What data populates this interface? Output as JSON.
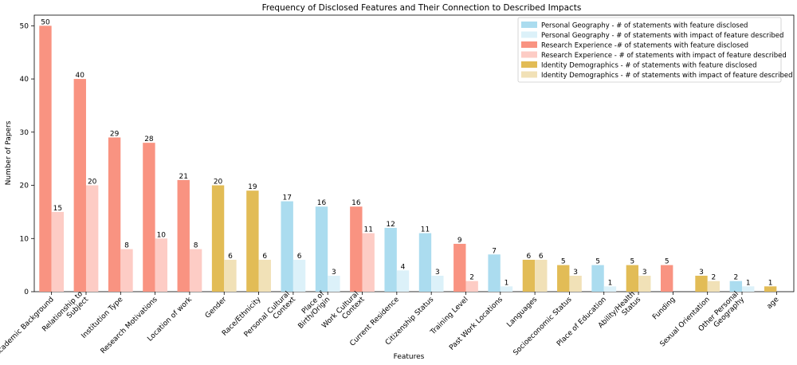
{
  "chart_data": {
    "type": "bar",
    "title": "Frequency of Disclosed Features and Their Connection to Described Impacts",
    "xlabel": "Features",
    "ylabel": "Number of Papers",
    "ylim": [
      0,
      52
    ],
    "yticks": [
      0,
      10,
      20,
      30,
      40,
      50
    ],
    "grid": false,
    "legend_position": "top-right",
    "colors": {
      "personal_disclosed": "#abdcef",
      "personal_impact": "#dcf1f9",
      "research_disclosed": "#f99381",
      "research_impact": "#fdccc5",
      "identity_disclosed": "#e2bc56",
      "identity_impact": "#f1e1b7"
    },
    "legend": [
      {
        "label": "Personal Geography - # of statements with feature disclosed",
        "color_key": "personal_disclosed"
      },
      {
        "label": "Personal Geography - # of statements with impact of feature described",
        "color_key": "personal_impact"
      },
      {
        "label": "Research Experience -# of statements with feature disclosed",
        "color_key": "research_disclosed"
      },
      {
        "label": "Research Experience - # of statements with impact of feature described",
        "color_key": "research_impact"
      },
      {
        "label": "Identity Demographics - # of statements with feature disclosed",
        "color_key": "identity_disclosed"
      },
      {
        "label": "Identity Demographics - # of statements with impact of feature described",
        "color_key": "identity_impact"
      }
    ],
    "categories": [
      {
        "label": "Academic Background",
        "group": "research",
        "disclosed": 50,
        "impact": 15
      },
      {
        "label": "Relationship to\nSubject",
        "group": "research",
        "disclosed": 40,
        "impact": 20
      },
      {
        "label": "Institution Type",
        "group": "research",
        "disclosed": 29,
        "impact": 8
      },
      {
        "label": "Research Motivations",
        "group": "research",
        "disclosed": 28,
        "impact": 10
      },
      {
        "label": "Location of work",
        "group": "research",
        "disclosed": 21,
        "impact": 8
      },
      {
        "label": "Gender",
        "group": "identity",
        "disclosed": 20,
        "impact": 6
      },
      {
        "label": "Race/Ethnicity",
        "group": "identity",
        "disclosed": 19,
        "impact": 6
      },
      {
        "label": "Personal Cultural\nContext",
        "group": "personal",
        "disclosed": 17,
        "impact": 6
      },
      {
        "label": "Place of\nBirth/Origin",
        "group": "personal",
        "disclosed": 16,
        "impact": 3
      },
      {
        "label": "Work Cultural\nContext",
        "group": "research",
        "disclosed": 16,
        "impact": 11
      },
      {
        "label": "Current Residence",
        "group": "personal",
        "disclosed": 12,
        "impact": 4
      },
      {
        "label": "Citizenship Status",
        "group": "personal",
        "disclosed": 11,
        "impact": 3
      },
      {
        "label": "Training Level",
        "group": "research",
        "disclosed": 9,
        "impact": 2
      },
      {
        "label": "Past Work Locations",
        "group": "personal",
        "disclosed": 7,
        "impact": 1
      },
      {
        "label": "Languages",
        "group": "identity",
        "disclosed": 6,
        "impact": 6
      },
      {
        "label": "Socioeconomic Status",
        "group": "identity",
        "disclosed": 5,
        "impact": 3
      },
      {
        "label": "Place of Education",
        "group": "personal",
        "disclosed": 5,
        "impact": 1
      },
      {
        "label": "Ability/Health\nStatus",
        "group": "identity",
        "disclosed": 5,
        "impact": 3
      },
      {
        "label": "Funding",
        "group": "research",
        "disclosed": 5,
        "impact": null
      },
      {
        "label": "Sexual Orientation",
        "group": "identity",
        "disclosed": 3,
        "impact": 2
      },
      {
        "label": "Other Personal\nGeography",
        "group": "personal",
        "disclosed": 2,
        "impact": 1
      },
      {
        "label": "age",
        "group": "identity",
        "disclosed": 1,
        "impact": null
      }
    ]
  }
}
